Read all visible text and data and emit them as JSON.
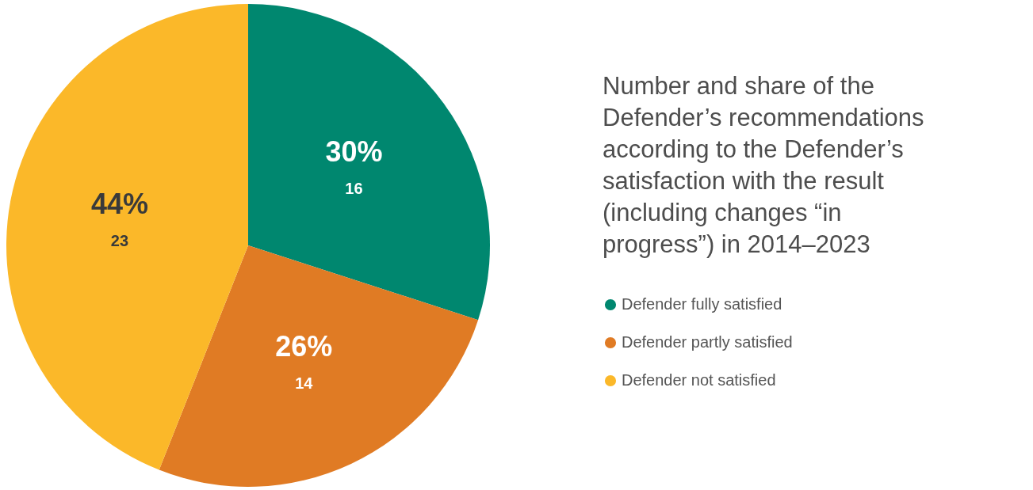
{
  "chart_data": {
    "type": "pie",
    "title": "Number and share of the Defender’s recommendations according to the Defender’s satisfaction with the result (including changes “in progress”) in 2014–2023",
    "categories": [
      "Defender fully satisfied",
      "Defender partly satisfied",
      "Defender not satisfied"
    ],
    "values": [
      30,
      26,
      44
    ],
    "colors": [
      "#00876f",
      "#e07b24",
      "#fbb829"
    ],
    "value_labels": [
      "30%\n16",
      "26%\n14",
      "44%\n23"
    ],
    "legend": "right"
  }
}
